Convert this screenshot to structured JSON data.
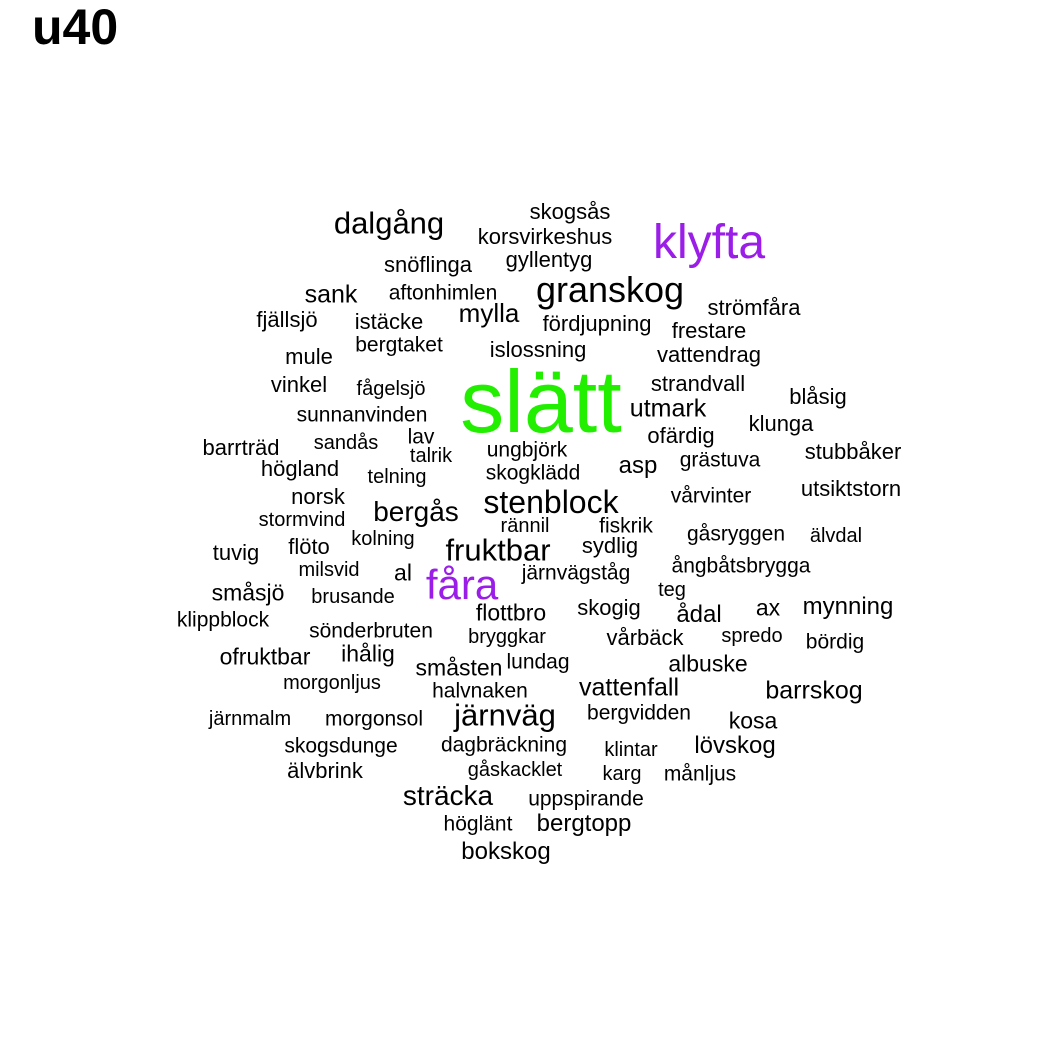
{
  "title": "u40",
  "colors": {
    "default": "#000000",
    "green": "#22ee00",
    "purple": "#9a1ee8"
  },
  "words": [
    {
      "text": "slätt",
      "color": "green"
    },
    {
      "text": "klyfta",
      "color": "purple"
    },
    {
      "text": "fåra",
      "color": "purple"
    },
    {
      "text": "granskog"
    },
    {
      "text": "dalgång"
    },
    {
      "text": "stenblock"
    },
    {
      "text": "fruktbar"
    },
    {
      "text": "järnväg"
    },
    {
      "text": "bergås"
    },
    {
      "text": "mylla"
    },
    {
      "text": "sank"
    },
    {
      "text": "utmark"
    },
    {
      "text": "barrskog"
    },
    {
      "text": "vattenfall"
    },
    {
      "text": "sträcka"
    },
    {
      "text": "mynning"
    },
    {
      "text": "lövskog"
    },
    {
      "text": "albuske"
    },
    {
      "text": "ofruktbar"
    },
    {
      "text": "flottbro"
    },
    {
      "text": "bokskog"
    },
    {
      "text": "bergtopp"
    },
    {
      "text": "ax"
    },
    {
      "text": "kosa"
    },
    {
      "text": "asp"
    },
    {
      "text": "ådal"
    },
    {
      "text": "småsjö"
    },
    {
      "text": "ihålig"
    },
    {
      "text": "småsten"
    },
    {
      "text": "al"
    },
    {
      "text": "skogsås"
    },
    {
      "text": "korsvirkeshus"
    },
    {
      "text": "gyllentyg"
    },
    {
      "text": "snöflinga"
    },
    {
      "text": "aftonhimlen"
    },
    {
      "text": "strömfåra"
    },
    {
      "text": "fjällsjö"
    },
    {
      "text": "istäcke"
    },
    {
      "text": "fördjupning"
    },
    {
      "text": "frestare"
    },
    {
      "text": "bergtaket"
    },
    {
      "text": "islossning"
    },
    {
      "text": "vattendrag"
    },
    {
      "text": "mule"
    },
    {
      "text": "vinkel"
    },
    {
      "text": "fågelsjö"
    },
    {
      "text": "strandvall"
    },
    {
      "text": "blåsig"
    },
    {
      "text": "sunnanvinden"
    },
    {
      "text": "klunga"
    },
    {
      "text": "barrträd"
    },
    {
      "text": "sandås"
    },
    {
      "text": "lav"
    },
    {
      "text": "ofärdig"
    },
    {
      "text": "talrik"
    },
    {
      "text": "ungbjörk"
    },
    {
      "text": "stubbåker"
    },
    {
      "text": "högland"
    },
    {
      "text": "grästuva"
    },
    {
      "text": "telning"
    },
    {
      "text": "skogklädd"
    },
    {
      "text": "utsiktstorn"
    },
    {
      "text": "norsk"
    },
    {
      "text": "vårvinter"
    },
    {
      "text": "stormvind"
    },
    {
      "text": "rännil"
    },
    {
      "text": "fiskrik"
    },
    {
      "text": "gåsryggen"
    },
    {
      "text": "älvdal"
    },
    {
      "text": "kolning"
    },
    {
      "text": "sydlig"
    },
    {
      "text": "tuvig"
    },
    {
      "text": "flöto"
    },
    {
      "text": "ångbåtsbrygga"
    },
    {
      "text": "milsvid"
    },
    {
      "text": "järnvägståg"
    },
    {
      "text": "teg"
    },
    {
      "text": "brusande"
    },
    {
      "text": "skogig"
    },
    {
      "text": "klippblock"
    },
    {
      "text": "sönderbruten"
    },
    {
      "text": "bryggkar"
    },
    {
      "text": "vårbäck"
    },
    {
      "text": "spredo"
    },
    {
      "text": "bördig"
    },
    {
      "text": "lundag"
    },
    {
      "text": "morgonljus"
    },
    {
      "text": "halvnaken"
    },
    {
      "text": "bergvidden"
    },
    {
      "text": "järnmalm"
    },
    {
      "text": "morgonsol"
    },
    {
      "text": "skogsdunge"
    },
    {
      "text": "dagbräckning"
    },
    {
      "text": "klintar"
    },
    {
      "text": "älvbrink"
    },
    {
      "text": "gåskacklet"
    },
    {
      "text": "karg"
    },
    {
      "text": "månljus"
    },
    {
      "text": "uppspirande"
    },
    {
      "text": "höglänt"
    }
  ]
}
